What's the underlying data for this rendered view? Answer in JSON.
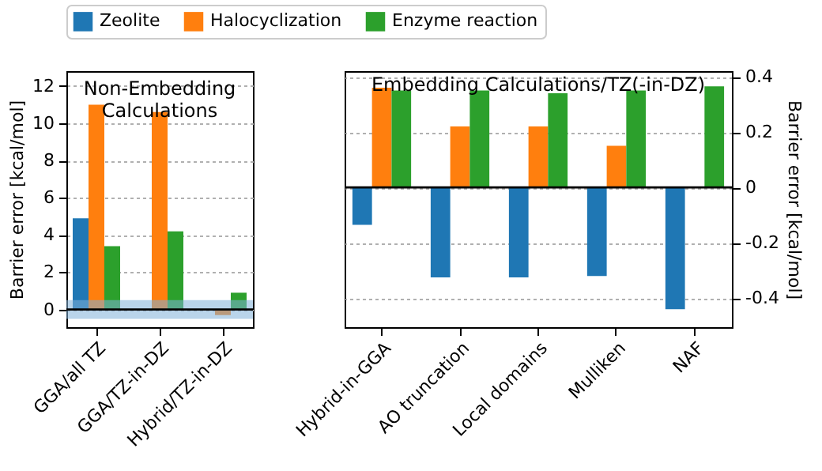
{
  "chart_data": [
    {
      "type": "bar",
      "title": "Non-Embedding Calculations",
      "ylabel": "Barrier error [kcal/mol]",
      "categories": [
        "GGA/all TZ",
        "GGA/TZ-in-DZ",
        "Hybrid/TZ-in-DZ"
      ],
      "series": [
        {
          "name": "Zeolite",
          "color": "#1f77b4",
          "values": [
            4.9,
            null,
            null
          ]
        },
        {
          "name": "Halocyclization",
          "color": "#ff7f0e",
          "values": [
            11.0,
            10.6,
            -0.3
          ]
        },
        {
          "name": "Enzyme reaction",
          "color": "#2ca02c",
          "values": [
            3.4,
            4.2,
            0.9
          ]
        }
      ],
      "ylim": [
        -0.95,
        12.8
      ],
      "yticks": [
        0,
        2,
        4,
        6,
        8,
        10,
        12
      ],
      "grid": "y",
      "legend": "top",
      "ref_lines": [
        {
          "axis": "y",
          "value": 0,
          "color": "#000000"
        }
      ],
      "bands": [
        {
          "axis": "y",
          "from": -0.5,
          "to": 0.5,
          "color": "#7fb0d8"
        }
      ]
    },
    {
      "type": "bar",
      "title": "Embedding Calculations/TZ(-in-DZ)",
      "y2label": "Barrier error [kcal/mol]",
      "categories": [
        "Hybrid-in-GGA",
        "AO truncation",
        "Local domains",
        "Mulliken",
        "NAF"
      ],
      "series": [
        {
          "name": "Zeolite",
          "color": "#1f77b4",
          "axis": "y2",
          "values": [
            -0.135,
            -0.325,
            -0.325,
            -0.32,
            -0.44
          ]
        },
        {
          "name": "Halocyclization",
          "color": "#ff7f0e",
          "axis": "y2",
          "values": [
            0.36,
            0.22,
            0.22,
            0.15,
            null
          ]
        },
        {
          "name": "Enzyme reaction",
          "color": "#2ca02c",
          "axis": "y2",
          "values": [
            0.35,
            0.35,
            0.34,
            0.35,
            0.365
          ]
        }
      ],
      "y2lim": [
        -0.505,
        0.42
      ],
      "y2ticks": [
        {
          "value": -0.4,
          "label": "-0.4"
        },
        {
          "value": -0.2,
          "label": "-0.2"
        },
        0,
        {
          "value": 0.2,
          "label": "0.2"
        },
        {
          "value": 0.4,
          "label": "0.4"
        }
      ],
      "grid": "y",
      "legend": "top",
      "ref_lines": [
        {
          "axis": "y2",
          "value": 0,
          "color": "#000000"
        }
      ]
    }
  ]
}
